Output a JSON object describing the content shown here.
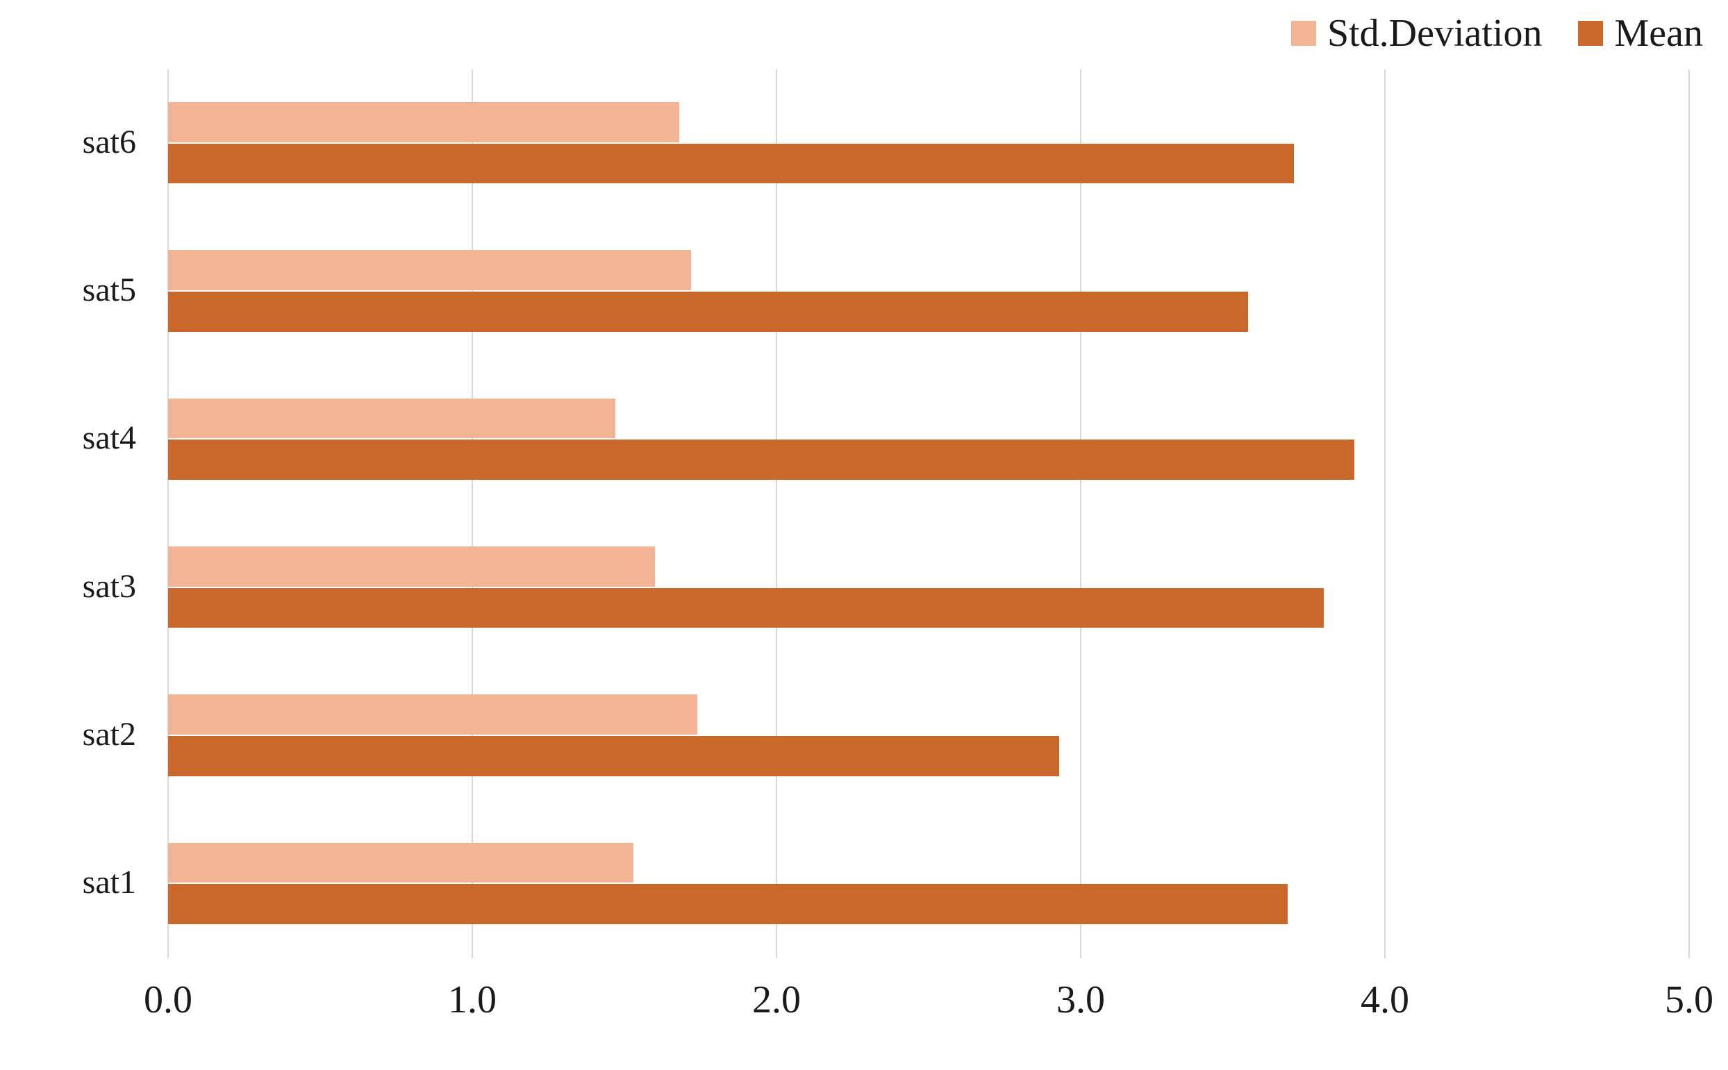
{
  "chart_data": {
    "type": "bar",
    "orientation": "horizontal",
    "categories": [
      "sat6",
      "sat5",
      "sat4",
      "sat3",
      "sat2",
      "sat1"
    ],
    "categories_order": "top-to-bottom",
    "series": [
      {
        "name": "Std.Deviation",
        "color": "#f3b496",
        "values": [
          1.68,
          1.72,
          1.47,
          1.6,
          1.74,
          1.53
        ]
      },
      {
        "name": "Mean",
        "color": "#c8682a",
        "values": [
          3.7,
          3.55,
          3.9,
          3.8,
          2.93,
          3.68
        ]
      }
    ],
    "xlim": [
      0,
      5
    ],
    "x_ticks": [
      "0.0",
      "1.0",
      "2.0",
      "3.0",
      "4.0",
      "5.0"
    ],
    "grid": true,
    "gridline_color": "#d9d9d9",
    "legend_position": "top-right",
    "title": "",
    "xlabel": "",
    "ylabel": ""
  }
}
